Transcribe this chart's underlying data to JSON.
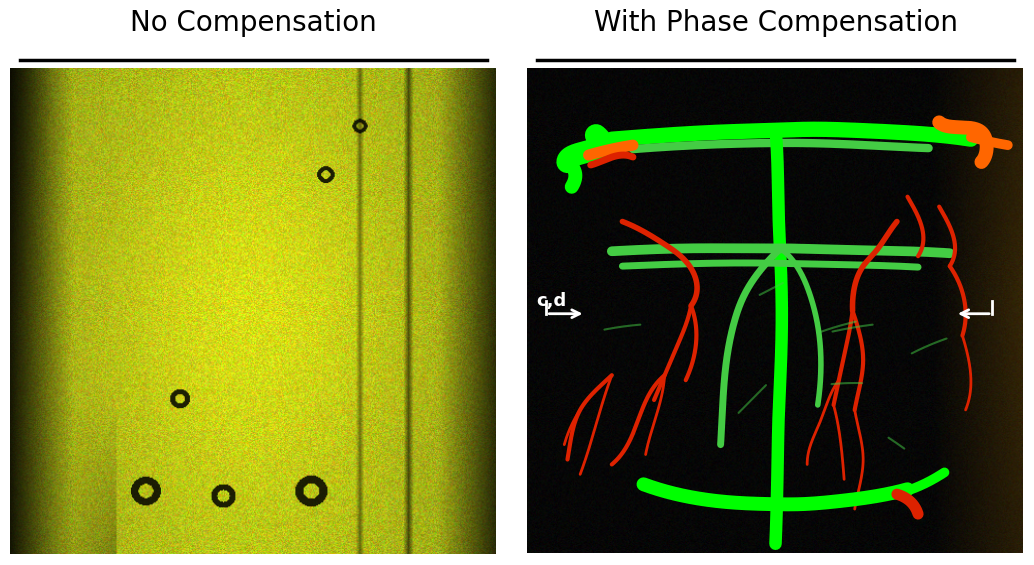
{
  "title_left": "No Compensation",
  "title_right": "With Phase Compensation",
  "title_fontsize": 20,
  "background_color": "#ffffff",
  "underline_color": "#000000",
  "annotation_fontsize": 14,
  "fig_width": 10.34,
  "fig_height": 5.65
}
